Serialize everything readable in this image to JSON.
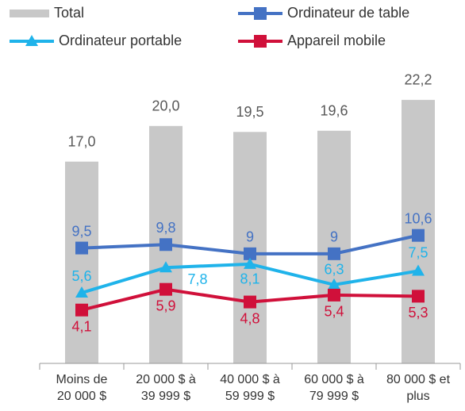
{
  "chart_data": {
    "type": "bar",
    "categories": [
      "Moins de\n20 000 $",
      "20 000 $ à\n39 999 $",
      "40 000 $ à\n59 999 $",
      "60 000 $ à\n79 999 $",
      "80 000 $ et\nplus"
    ],
    "ylim": [
      0,
      25
    ],
    "y2lim": [
      -0.55,
      25.3
    ],
    "legend": "top",
    "series": [
      {
        "name": "Total",
        "type": "bar",
        "color": "#c8c8c8",
        "values": [
          17.0,
          20.0,
          19.5,
          19.6,
          22.2
        ],
        "value_labels": [
          "17,0",
          "20,0",
          "19,5",
          "19,6",
          "22,2"
        ]
      },
      {
        "name": "Ordinateur de table",
        "type": "line",
        "axis": "y2",
        "marker": "square",
        "color": "#4472c4",
        "values": [
          9.5,
          9.8,
          9,
          9,
          10.6
        ],
        "value_labels": [
          "9,5",
          "9,8",
          "9",
          "9",
          "10,6"
        ]
      },
      {
        "name": "Ordinateur portable",
        "type": "line",
        "axis": "y2",
        "marker": "triangle",
        "color": "#1fb3ea",
        "values": [
          5.6,
          7.8,
          8.1,
          6.3,
          7.5
        ],
        "value_labels": [
          "5,6",
          "7,8",
          "8,1",
          "6,3",
          "7,5"
        ]
      },
      {
        "name": "Appareil mobile",
        "type": "line",
        "axis": "y2",
        "marker": "square",
        "color": "#d0103a",
        "values": [
          4.1,
          5.9,
          4.8,
          5.4,
          5.3
        ],
        "value_labels": [
          "4,1",
          "5,9",
          "4,8",
          "5,4",
          "5,3"
        ]
      }
    ]
  }
}
